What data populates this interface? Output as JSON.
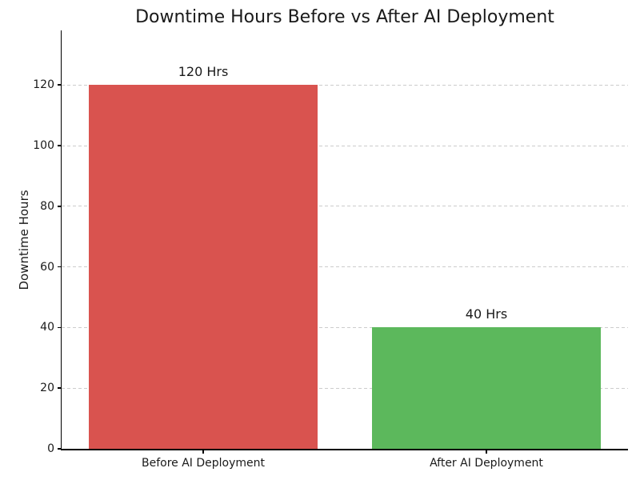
{
  "chart_data": {
    "type": "bar",
    "title": "Downtime Hours Before vs After AI Deployment",
    "ylabel": "Downtime Hours",
    "xlabel": "",
    "categories": [
      "Before AI Deployment",
      "After AI Deployment"
    ],
    "values": [
      120,
      40
    ],
    "bar_value_labels": [
      "120 Hrs",
      "40 Hrs"
    ],
    "bar_colors": [
      "#d9534f",
      "#5cb85c"
    ],
    "yticks": [
      0,
      20,
      40,
      60,
      80,
      100,
      120
    ],
    "ylim": [
      0,
      138
    ],
    "grid": {
      "axis": "y",
      "style": "dashed",
      "color": "#cccccc"
    },
    "legend": "none",
    "text_color": "#1a1a1a",
    "spine_color": "#000000",
    "background_color": "#ffffff"
  }
}
